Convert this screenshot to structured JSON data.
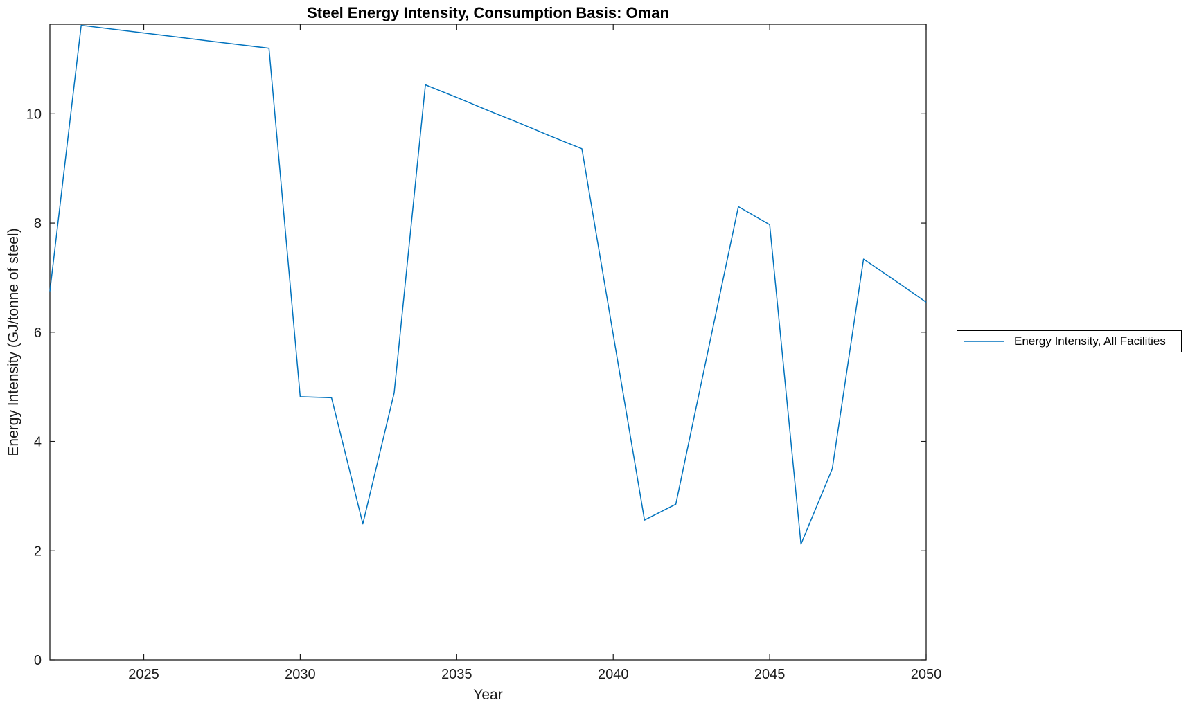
{
  "figure": {
    "background": "#ffffff"
  },
  "chart_data": {
    "type": "line",
    "title": "Steel Energy Intensity, Consumption Basis: Oman",
    "xlabel": "Year",
    "ylabel": "Energy Intensity (GJ/tonne of steel)",
    "xlim": [
      2022,
      2050
    ],
    "ylim": [
      0,
      11.64
    ],
    "xticks": [
      2025,
      2030,
      2035,
      2040,
      2045,
      2050
    ],
    "yticks": [
      0,
      2,
      4,
      6,
      8,
      10
    ],
    "grid": false,
    "box": true,
    "tick_direction": "in",
    "legend_position": "outside-right",
    "axis_color": "#1a1a1a",
    "line_color": "#0072BD",
    "series": [
      {
        "name": "Energy Intensity, All Facilities",
        "x": [
          2022,
          2023,
          2024,
          2025,
          2026,
          2027,
          2028,
          2029,
          2030,
          2031,
          2032,
          2033,
          2034,
          2035,
          2036,
          2037,
          2038,
          2039,
          2040,
          2041,
          2042,
          2043,
          2044,
          2045,
          2046,
          2047,
          2048,
          2049,
          2050
        ],
        "values": [
          6.75,
          11.62,
          11.55,
          11.48,
          11.41,
          11.34,
          11.27,
          11.2,
          4.82,
          4.8,
          2.49,
          4.89,
          10.53,
          10.3,
          10.06,
          9.83,
          9.59,
          9.36,
          5.96,
          2.56,
          2.85,
          5.58,
          8.3,
          7.97,
          2.12,
          3.5,
          7.34,
          6.95,
          6.55
        ]
      }
    ]
  }
}
